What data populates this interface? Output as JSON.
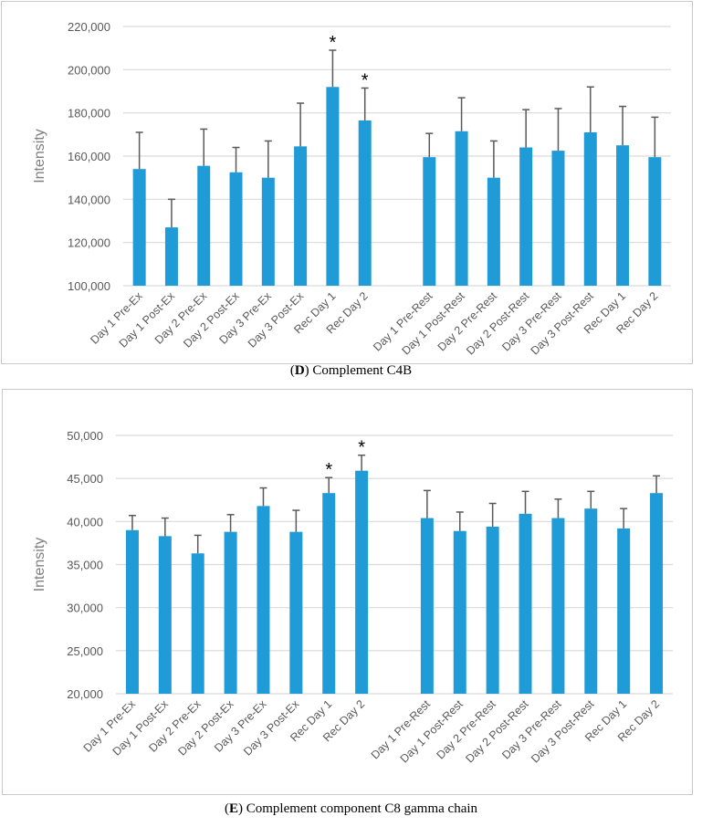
{
  "chart_data": [
    {
      "type": "bar",
      "title": "",
      "caption_letter": "D",
      "caption_text": "Complement C4B",
      "xlabel": "",
      "ylabel": "Intensity",
      "ylim": [
        100000,
        220000
      ],
      "yticks": [
        100000,
        120000,
        140000,
        160000,
        180000,
        200000,
        220000
      ],
      "ytick_labels": [
        "100,000",
        "120,000",
        "140,000",
        "160,000",
        "180,000",
        "200,000",
        "220,000"
      ],
      "grid": true,
      "color": "#1f9bd7",
      "groups": [
        {
          "categories": [
            "Day 1 Pre-Ex",
            "Day 1 Post-Ex",
            "Day 2 Pre-Ex",
            "Day 2 Post-Ex",
            "Day 3 Pre-Ex",
            "Day 3 Post-Ex",
            "Rec Day 1",
            "Rec Day 2"
          ],
          "values": [
            154000,
            127000,
            155500,
            152500,
            150000,
            164500,
            192000,
            176500
          ],
          "error_upper": [
            171000,
            140000,
            172500,
            164000,
            167000,
            184500,
            209000,
            191500
          ],
          "significant": [
            false,
            false,
            false,
            false,
            false,
            false,
            true,
            true
          ]
        },
        {
          "categories": [
            "Day 1 Pre-Rest",
            "Day 1 Post-Rest",
            "Day 2 Pre-Rest",
            "Day 2 Post-Rest",
            "Day 3 Pre-Rest",
            "Day 3 Post-Rest",
            "Rec Day 1",
            "Rec Day 2"
          ],
          "values": [
            159500,
            171500,
            150000,
            164000,
            162500,
            171000,
            165000,
            159500
          ],
          "error_upper": [
            170500,
            187000,
            167000,
            181500,
            182000,
            192000,
            183000,
            178000
          ],
          "significant": [
            false,
            false,
            false,
            false,
            false,
            false,
            false,
            false
          ]
        }
      ],
      "annotation": "*"
    },
    {
      "type": "bar",
      "title": "",
      "caption_letter": "E",
      "caption_text": "Complement component C8 gamma chain",
      "xlabel": "",
      "ylabel": "Intensity",
      "ylim": [
        20000,
        50000
      ],
      "yticks": [
        20000,
        25000,
        30000,
        35000,
        40000,
        45000,
        50000
      ],
      "ytick_labels": [
        "20,000",
        "25,000",
        "30,000",
        "35,000",
        "40,000",
        "45,000",
        "50,000"
      ],
      "grid": true,
      "color": "#1f9bd7",
      "groups": [
        {
          "categories": [
            "Day 1 Pre-Ex",
            "Day 1 Post-Ex",
            "Day 2 Pre-Ex",
            "Day 2 Post-Ex",
            "Day 3 Pre-Ex",
            "Day 3 Post-Ex",
            "Rec Day 1",
            "Rec Day 2"
          ],
          "values": [
            39000,
            38300,
            36300,
            38800,
            41800,
            38800,
            43300,
            45900
          ],
          "error_upper": [
            40700,
            40400,
            38400,
            40800,
            43900,
            41300,
            45100,
            47700
          ],
          "significant": [
            false,
            false,
            false,
            false,
            false,
            false,
            true,
            true
          ]
        },
        {
          "categories": [
            "Day 1 Pre-Rest",
            "Day 1 Post-Rest",
            "Day 2 Pre-Rest",
            "Day 2 Post-Rest",
            "Day 3 Pre-Rest",
            "Day 3 Post-Rest",
            "Rec Day 1",
            "Rec Day 2"
          ],
          "values": [
            40400,
            38900,
            39400,
            40900,
            40400,
            41500,
            39200,
            43300
          ],
          "error_upper": [
            43600,
            41100,
            42100,
            43500,
            42600,
            43500,
            41500,
            45300
          ],
          "significant": [
            false,
            false,
            false,
            false,
            false,
            false,
            false,
            false
          ]
        }
      ],
      "annotation": "*"
    }
  ]
}
